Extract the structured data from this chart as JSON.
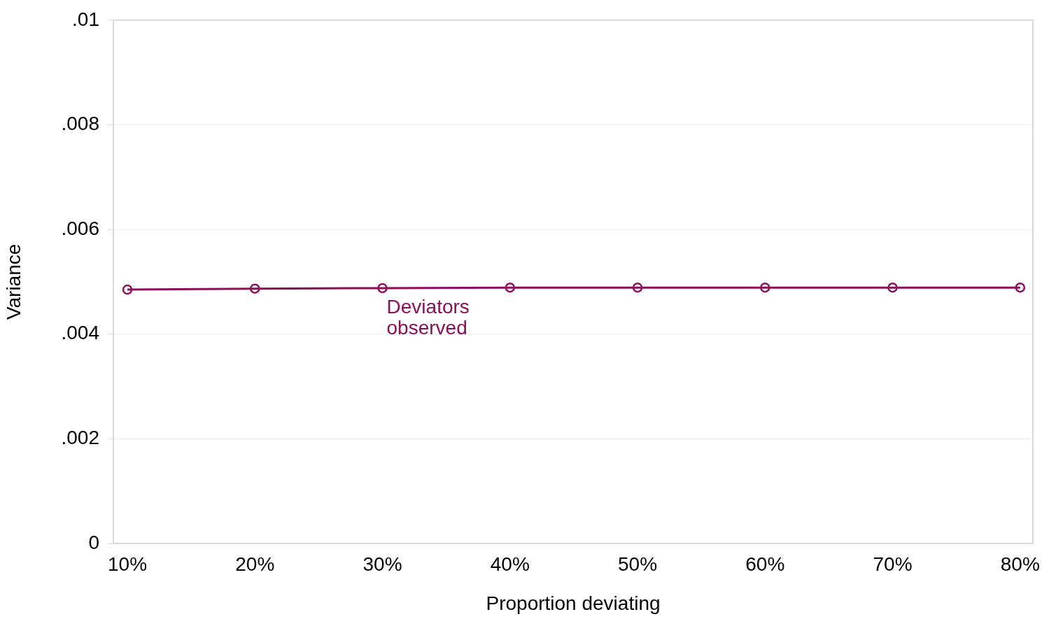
{
  "chart_data": {
    "type": "line",
    "xlabel": "Proportion deviating",
    "ylabel": "Variance",
    "x": [
      10,
      20,
      30,
      40,
      50,
      60,
      70,
      80
    ],
    "series": [
      {
        "name": "Deviators observed",
        "color": "#8b0f5a",
        "values": [
          0.00485,
          0.00487,
          0.00488,
          0.00489,
          0.00489,
          0.00489,
          0.00489,
          0.00489
        ]
      }
    ],
    "xlim": [
      8.9,
      81
    ],
    "xticks": [
      {
        "value": 10,
        "label": "10%"
      },
      {
        "value": 20,
        "label": "20%"
      },
      {
        "value": 30,
        "label": "30%"
      },
      {
        "value": 40,
        "label": "40%"
      },
      {
        "value": 50,
        "label": "50%"
      },
      {
        "value": 60,
        "label": "60%"
      },
      {
        "value": 70,
        "label": "70%"
      },
      {
        "value": 80,
        "label": "80%"
      }
    ],
    "ylim": [
      0,
      0.01
    ],
    "yticks": [
      {
        "value": 0,
        "label": "0"
      },
      {
        "value": 0.002,
        "label": ".002"
      },
      {
        "value": 0.004,
        "label": ".004"
      },
      {
        "value": 0.006,
        "label": ".006"
      },
      {
        "value": 0.008,
        "label": ".008"
      },
      {
        "value": 0.01,
        "label": ".01"
      }
    ],
    "grid": "y",
    "legend": false,
    "marker": "circle",
    "line_style": "solid"
  }
}
